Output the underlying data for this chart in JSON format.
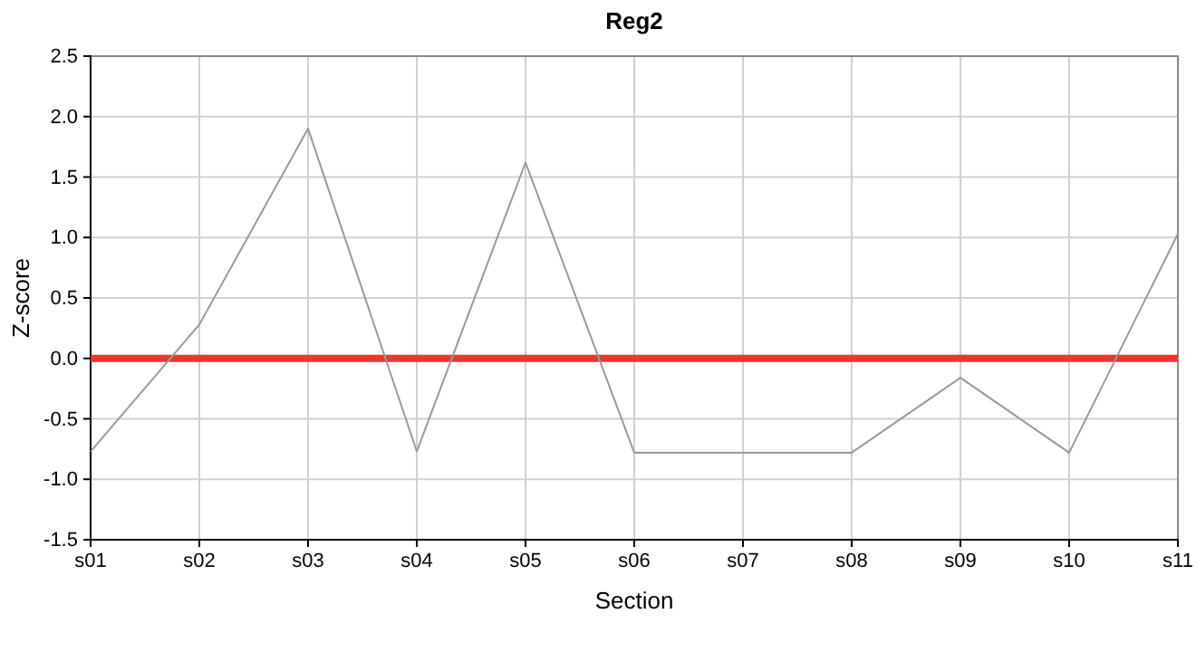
{
  "chart_data": {
    "type": "line",
    "title": "Reg2",
    "xlabel": "Section",
    "ylabel": "Z-score",
    "categories": [
      "s01",
      "s02",
      "s03",
      "s04",
      "s05",
      "s06",
      "s07",
      "s08",
      "s09",
      "s10",
      "s11"
    ],
    "series": [
      {
        "color": "#999999",
        "values": [
          -0.77,
          0.28,
          1.9,
          -0.77,
          1.62,
          -0.78,
          -0.78,
          -0.78,
          -0.16,
          -0.78,
          1.03
        ]
      }
    ],
    "ylim": [
      -1.5,
      2.5
    ],
    "yticks": [
      {
        "value": -1.5,
        "label": "-1.5"
      },
      {
        "value": -1,
        "label": "-1.0"
      },
      {
        "value": -0.5,
        "label": "-0.5"
      },
      {
        "value": 0,
        "label": "0.0"
      },
      {
        "value": 0.5,
        "label": "0.5"
      },
      {
        "value": 1,
        "label": "1.0"
      },
      {
        "value": 1.5,
        "label": "1.5"
      },
      {
        "value": 2,
        "label": "2.0"
      },
      {
        "value": 2.5,
        "label": "2.5"
      }
    ],
    "grid": true,
    "marker": "none",
    "line_style": "solid",
    "ref_lines": [
      {
        "axis": "y",
        "value": 0,
        "color": "#ee3333"
      }
    ]
  }
}
